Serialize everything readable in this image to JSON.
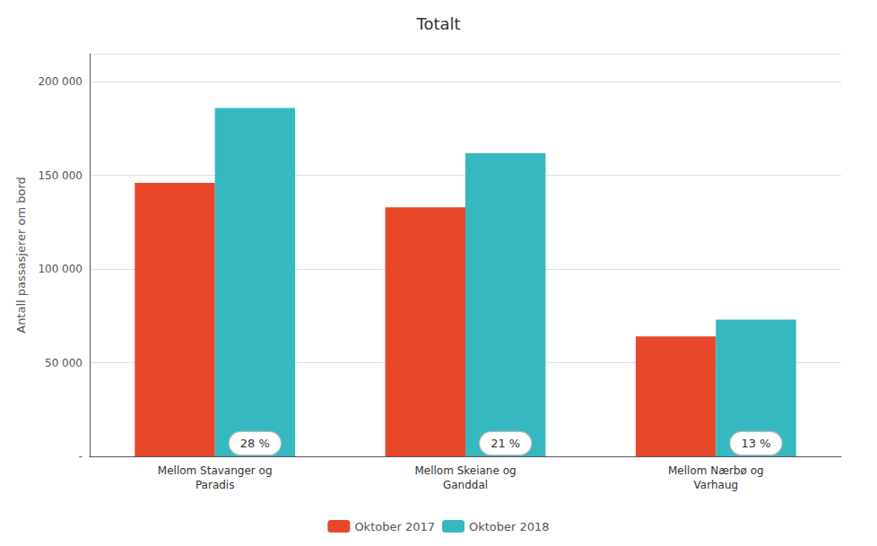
{
  "chart_data": {
    "type": "bar",
    "title": "Totalt",
    "ylabel": "Antall passasjerer om bord",
    "categories": [
      "Mellom Stavanger og\nParadis",
      "Mellom Skeiane og\nGanddal",
      "Mellom Nærbø og\nVarhaug"
    ],
    "series": [
      {
        "name": "Oktober 2017",
        "color": "#E8472A",
        "values": [
          146000,
          133000,
          64000
        ]
      },
      {
        "name": "Oktober 2018",
        "color": "#35B8C0",
        "values": [
          186000,
          162000,
          73000
        ]
      }
    ],
    "annotations": [
      "28 %",
      "21 %",
      "13 %"
    ],
    "ylim": [
      0,
      215000
    ],
    "yticks": [
      {
        "value": 0,
        "label": "-"
      },
      {
        "value": 50000,
        "label": "50 000"
      },
      {
        "value": 100000,
        "label": "100 000"
      },
      {
        "value": 150000,
        "label": "150 000"
      },
      {
        "value": 200000,
        "label": "200 000"
      }
    ],
    "grid": true,
    "legend": "bottom"
  }
}
